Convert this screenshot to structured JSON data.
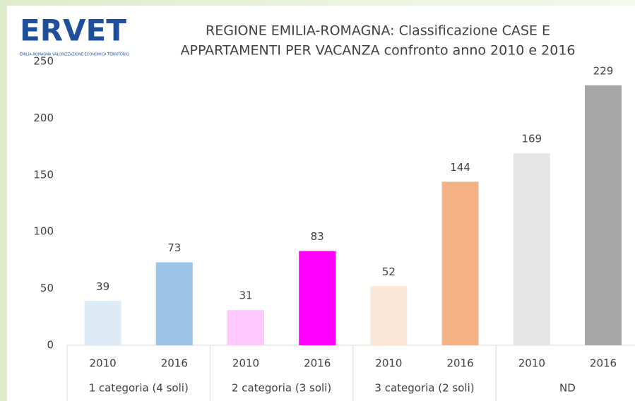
{
  "logo": {
    "name": "ERVET",
    "tagline": "EMILIA-ROMAGNA VALORIZZAZIONE ECONOMICA TERRITORIO"
  },
  "chart_data": {
    "type": "bar",
    "title": [
      "REGIONE EMILIA-ROMAGNA: Classificazione CASE E",
      "APPARTAMENTI PER VACANZA confronto anno 2010 e 2016"
    ],
    "categories": [
      "2010",
      "2016",
      "2010",
      "2016",
      "2010",
      "2016",
      "2010",
      "2016"
    ],
    "groups": [
      "1 categoria (4 soli)",
      "2 categoria (3 soli)",
      "3 categoria (2 soli)",
      "ND"
    ],
    "values": [
      39,
      73,
      31,
      83,
      52,
      144,
      169,
      229
    ],
    "colors": [
      "#ddebf7",
      "#9dc3e6",
      "#ffc9ff",
      "#ff00ff",
      "#fbe5d6",
      "#f4b183",
      "#e7e6e6",
      "#a6a6a6"
    ],
    "ylim": [
      0,
      250
    ],
    "yticks": [
      0,
      50,
      100,
      150,
      200,
      250
    ],
    "grid": false
  }
}
